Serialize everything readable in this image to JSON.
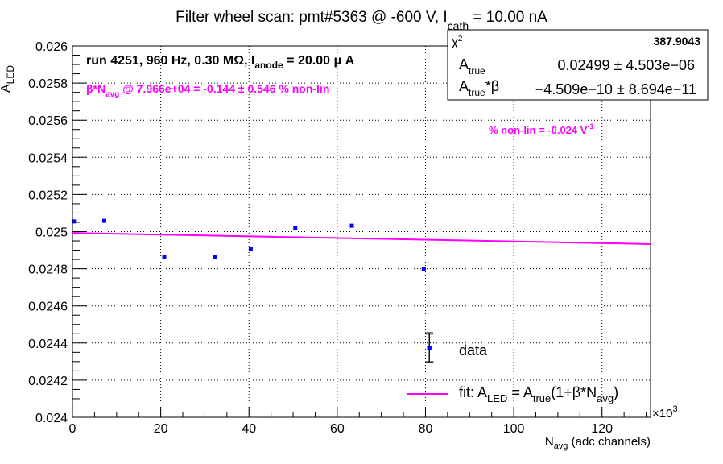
{
  "chart_data": {
    "type": "scatter",
    "title": "Filter wheel scan: pmt#5363 @  -600 V, I",
    "title_sub": "cath",
    "title_rest": " = 10.00 nA",
    "ylabel_main": "A",
    "ylabel_sub": "LED",
    "xlabel_main": "N",
    "xlabel_sub": "avg",
    "xlabel_rest": " (adc channels)",
    "x_exponent_label": "×10",
    "x_exponent_power": "3",
    "xlim": [
      0,
      131
    ],
    "ylim": [
      0.024,
      0.026
    ],
    "x_ticks": [
      "0",
      "20",
      "40",
      "60",
      "80",
      "100",
      "120"
    ],
    "y_ticks": [
      "0.024",
      "0.0242",
      "0.0244",
      "0.0246",
      "0.0248",
      "0.025",
      "0.0252",
      "0.0254",
      "0.0256",
      "0.0258",
      "0.026"
    ],
    "grid": true,
    "colors": {
      "data": "#0000ff",
      "fit": "#ff00ff",
      "text_magenta": "#ff00ff",
      "axis": "#000000"
    },
    "series": [
      {
        "name": "data",
        "points": [
          {
            "x": 0.5,
            "y": 0.025055,
            "err": 4.5e-06
          },
          {
            "x": 7.2,
            "y": 0.025058,
            "err": 4.5e-06
          },
          {
            "x": 20.8,
            "y": 0.024865,
            "err": 4.5e-06
          },
          {
            "x": 32.2,
            "y": 0.024863,
            "err": 4.5e-06
          },
          {
            "x": 40.4,
            "y": 0.024905,
            "err": 4.5e-06
          },
          {
            "x": 50.5,
            "y": 0.02502,
            "err": 4.5e-06
          },
          {
            "x": 63.3,
            "y": 0.025032,
            "err": 4.5e-06
          },
          {
            "x": 79.6,
            "y": 0.024798,
            "err": 4.5e-06
          },
          {
            "x": 80.9,
            "y": 0.024373,
            "err": 7.5e-05
          }
        ]
      },
      {
        "name": "fit",
        "fit_line": {
          "x0": 0,
          "y0": 0.024993,
          "x1": 131,
          "y1": 0.024933
        }
      }
    ]
  },
  "stats_box": {
    "chi2_label": "χ",
    "chi2_sup": "2",
    "chi2_value": "387.9043",
    "atrue_label": "A",
    "atrue_sub": "true",
    "atrue_value": "0.02499 ± 4.503e−06",
    "ab_label": "A",
    "ab_sub": "true",
    "ab_rest": "*β",
    "ab_value": "−4.509e−10 ± 8.694e−11"
  },
  "annotations": {
    "run_a": "run 4251, 960 Hz, 0.30 MΩ, I",
    "run_sub": "anode",
    "run_b": " = 20.00 μ A",
    "beta_a": "β*N",
    "beta_sub": "avg",
    "beta_b": " @ 7.966e+04 = -0.144 ± 0.546 % non-lin",
    "nonlin_a": "% non-lin = -0.024 V",
    "nonlin_sup": "-1"
  },
  "legend": {
    "data_label": "data",
    "fit_a": "fit: A",
    "fit_sub1": "LED",
    "fit_b": " = A",
    "fit_sub2": "true",
    "fit_c": "(1+β*N",
    "fit_sub3": "avg",
    "fit_d": ")"
  }
}
